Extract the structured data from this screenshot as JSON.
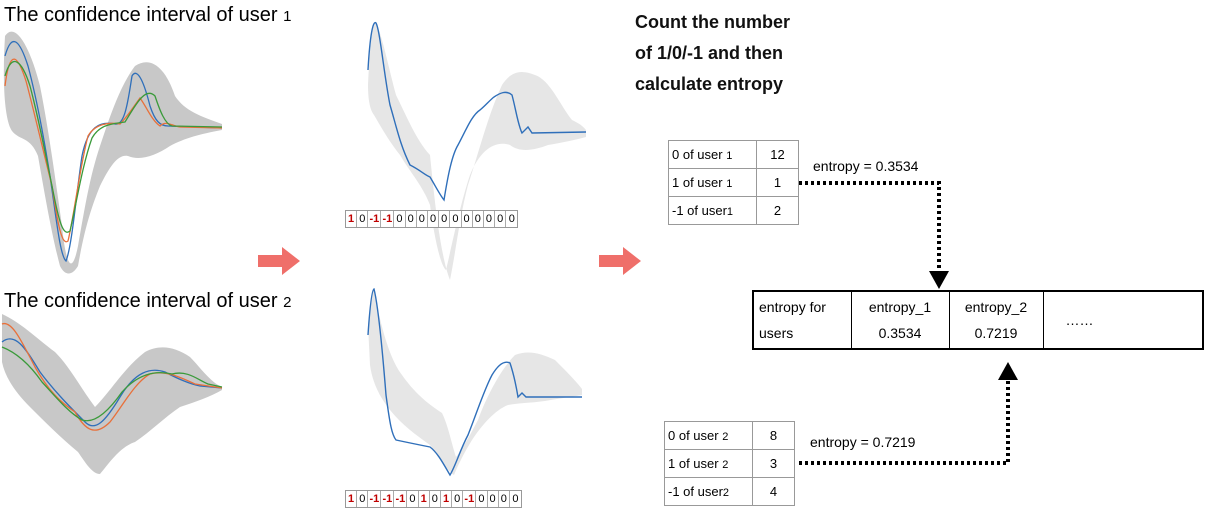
{
  "user1": {
    "title": "The confidence interval of user",
    "num": "1",
    "codes": [
      "1",
      "0",
      "-1",
      "-1",
      "0",
      "0",
      "0",
      "0",
      "0",
      "0",
      "0",
      "0",
      "0",
      "0",
      "0"
    ],
    "table": [
      {
        "label": "0 of user",
        "num": "1",
        "value": "12"
      },
      {
        "label": "1 of user",
        "num": "1",
        "value": "1"
      },
      {
        "label": "-1 of user",
        "num": "1",
        "value": "2"
      }
    ],
    "entropy_label": "entropy = 0.3534"
  },
  "user2": {
    "title": "The confidence interval of user",
    "num": "2",
    "codes": [
      "1",
      "0",
      "-1",
      "-1",
      "-1",
      "0",
      "1",
      "0",
      "1",
      "0",
      "-1",
      "0",
      "0",
      "0",
      "0"
    ],
    "table": [
      {
        "label": "0 of user",
        "num": "2",
        "value": "8"
      },
      {
        "label": "1 of user",
        "num": "2",
        "value": "3"
      },
      {
        "label": "-1 of user",
        "num": "2",
        "value": "4"
      }
    ],
    "entropy_label": "entropy = 0.7219"
  },
  "heading": [
    "Count the number",
    "of 1/0/-1 and then",
    "calculate entropy"
  ],
  "entropy_table": {
    "header_line1": "entropy for",
    "header_line2": "users",
    "cols": [
      {
        "name": "entropy_1",
        "value": "0.3534"
      },
      {
        "name": "entropy_2",
        "value": "0.7219"
      }
    ],
    "ellipsis": "……"
  },
  "colors": {
    "band": "#c8c8c8",
    "band_light": "#e6e6e6",
    "blue": "#2f6fba",
    "orange": "#e8703a",
    "green": "#3a9a3a",
    "arrow": "#ef6f6a",
    "red_code": "#c00000"
  }
}
